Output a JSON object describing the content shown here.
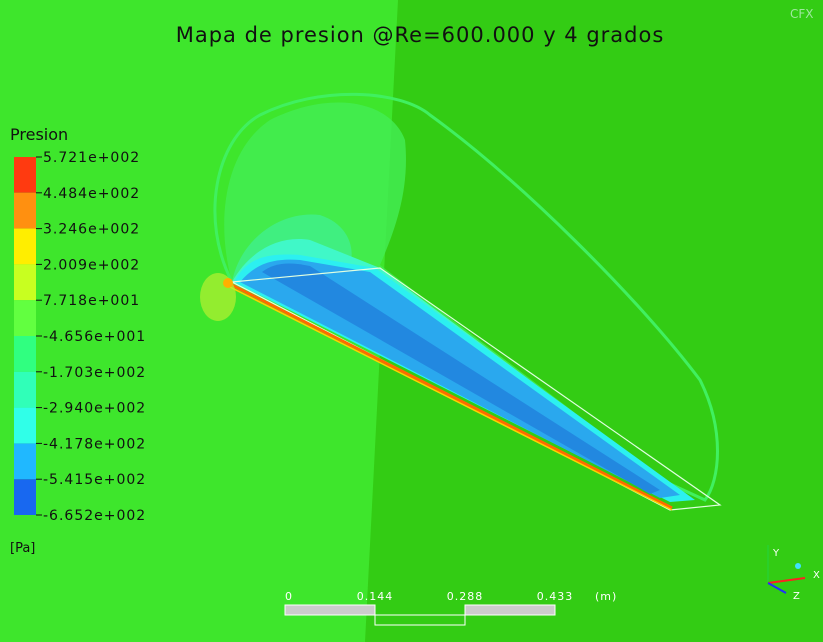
{
  "title": "Mapa de presion @Re=600.000 y 4 grados",
  "logo": "CFX",
  "legend": {
    "title": "Presion",
    "labels": [
      "5.721e+002",
      "4.484e+002",
      "3.246e+002",
      "2.009e+002",
      "7.718e+001",
      "-4.656e+001",
      "-1.703e+002",
      "-2.940e+002",
      "-4.178e+002",
      "-5.415e+002",
      "-6.652e+002"
    ],
    "unit": "[Pa]"
  },
  "scale": {
    "labels": [
      "0",
      "0.144",
      "0.288",
      "0.433"
    ],
    "unit": "(m)"
  },
  "axes": {
    "x": "X",
    "y": "Y",
    "z": "Z"
  }
}
